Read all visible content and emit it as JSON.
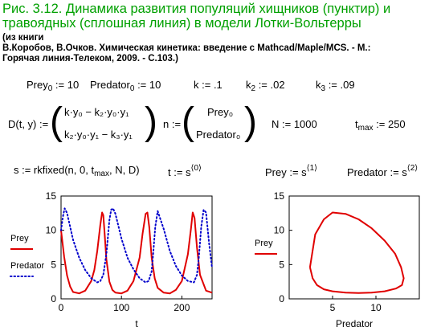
{
  "title": {
    "line1": "Рис. 3.12. Динамика развития популяций хищников (пунктир) и",
    "line2": "травоядных (сплошная линия) в модели Лотки-Вольтерры"
  },
  "book": {
    "line1": "(из книги",
    "line2": "В.Коробов, В.Очков. Химическая кинетика: введение с Mathcad/Maple/MCS. - М.:",
    "line3": "Горячая  линия-Телеком, 2009. - С.103.)"
  },
  "params": {
    "prey0_name": "Prey",
    "prey0_sub": "0",
    "prey0_val": ":= 10",
    "pred0_name": "Predator",
    "pred0_sub": "0",
    "pred0_val": ":= 10",
    "k_name": "k",
    "k_val": ":= .1",
    "k2_name": "k",
    "k2_sub": "2",
    "k2_val": ":= .02",
    "k3_name": "k",
    "k3_sub": "3",
    "k3_val": ":= .09"
  },
  "system": {
    "lhs": "D(t, y) :=",
    "row1": "k·y₀ − k₂·y₀·y₁",
    "row2": "k₂·y₀·y₁ − k₃·y₁",
    "n_lhs": "n :=",
    "n_row1": "Prey₀",
    "n_row2": "Predator₀",
    "N": "N := 1000",
    "tmax_name": "t",
    "tmax_sub": "max",
    "tmax_val": ":= 250"
  },
  "solve": {
    "s_pre": "s := rkfixed(n, 0, t",
    "s_sub": "max",
    "s_post": ", N, D)",
    "t_eq": "t := s",
    "t_sup": "⟨0⟩",
    "prey_eq": "Prey := s",
    "prey_sup": "⟨1⟩",
    "pred_eq": "Predator := s",
    "pred_sup": "⟨2⟩"
  },
  "chart_data": [
    {
      "type": "line",
      "xlabel": "t",
      "ylabel": "",
      "xlim": [
        0,
        250
      ],
      "ylim": [
        0,
        15
      ],
      "x_ticks": [
        "0",
        "100",
        "200"
      ],
      "y_ticks": [
        "0",
        "5",
        "10",
        "15"
      ],
      "legend": [
        "Prey",
        "Predator"
      ],
      "legend_position": "left",
      "model": {
        "prey0": 10,
        "predator0": 10,
        "k": 0.1,
        "k2": 0.02,
        "k3": 0.09,
        "tmax": 250,
        "N": 1000
      },
      "series": [
        {
          "name": "Prey",
          "color": "#e00000",
          "style": "solid",
          "x": [
            0,
            5,
            10,
            15,
            20,
            30,
            40,
            50,
            55,
            60,
            65,
            68,
            70,
            72,
            75,
            80,
            85,
            90,
            100,
            110,
            120,
            130,
            135,
            140,
            143,
            146,
            150,
            155,
            160,
            170,
            180,
            190,
            200,
            210,
            215,
            218,
            221,
            225,
            230,
            240,
            250
          ],
          "values": [
            10,
            6.2,
            3.4,
            1.8,
            1.0,
            0.8,
            1.2,
            2.6,
            4.2,
            7.0,
            10.8,
            12.6,
            12.2,
            9.8,
            5.8,
            2.5,
            1.3,
            0.9,
            0.8,
            1.2,
            2.6,
            6.0,
            9.5,
            12.4,
            12.6,
            10.5,
            6.0,
            3.0,
            1.6,
            0.9,
            0.8,
            1.3,
            2.6,
            6.5,
            10.2,
            12.6,
            11.8,
            7.5,
            3.5,
            1.2,
            0.9
          ]
        },
        {
          "name": "Predator",
          "color": "#0000cc",
          "style": "dotted",
          "x": [
            0,
            3,
            6,
            10,
            20,
            30,
            40,
            50,
            60,
            65,
            70,
            75,
            78,
            80,
            83,
            86,
            90,
            100,
            110,
            120,
            130,
            140,
            145,
            150,
            153,
            156,
            160,
            170,
            180,
            190,
            200,
            210,
            220,
            225,
            228,
            232,
            236,
            240,
            245,
            250
          ],
          "values": [
            10,
            12.0,
            13.2,
            12.5,
            8.6,
            6.0,
            4.2,
            3.0,
            2.4,
            2.6,
            3.5,
            6.5,
            9.5,
            11.5,
            13.0,
            13.2,
            12.4,
            8.8,
            6.0,
            4.3,
            3.0,
            2.4,
            2.6,
            4.0,
            7.2,
            10.5,
            12.8,
            10.2,
            7.0,
            4.8,
            3.4,
            2.6,
            2.4,
            3.5,
            6.0,
            10.5,
            13.0,
            12.6,
            8.2,
            4.5
          ]
        }
      ]
    },
    {
      "type": "line",
      "xlabel": "Predator",
      "ylabel": "",
      "xlim": [
        0,
        15
      ],
      "ylim": [
        0,
        15
      ],
      "x_ticks": [
        "5",
        "10"
      ],
      "y_ticks": [
        "0",
        "5",
        "10",
        "15"
      ],
      "legend": [
        "Prey"
      ],
      "legend_position": "left",
      "series": [
        {
          "name": "Prey",
          "color": "#e00000",
          "style": "solid",
          "x": [
            2.4,
            3.0,
            4.0,
            5.0,
            6.5,
            8.0,
            9.5,
            11.0,
            12.2,
            12.9,
            13.2,
            13.0,
            12.3,
            11.0,
            9.5,
            8.0,
            6.5,
            5.0,
            4.0,
            3.2,
            2.7,
            2.4
          ],
          "values": [
            4.6,
            9.4,
            11.6,
            12.6,
            12.4,
            11.6,
            10.3,
            8.5,
            6.6,
            4.6,
            3.0,
            2.0,
            1.5,
            1.1,
            0.9,
            0.85,
            0.9,
            1.1,
            1.4,
            2.0,
            3.0,
            4.6
          ]
        }
      ]
    }
  ]
}
